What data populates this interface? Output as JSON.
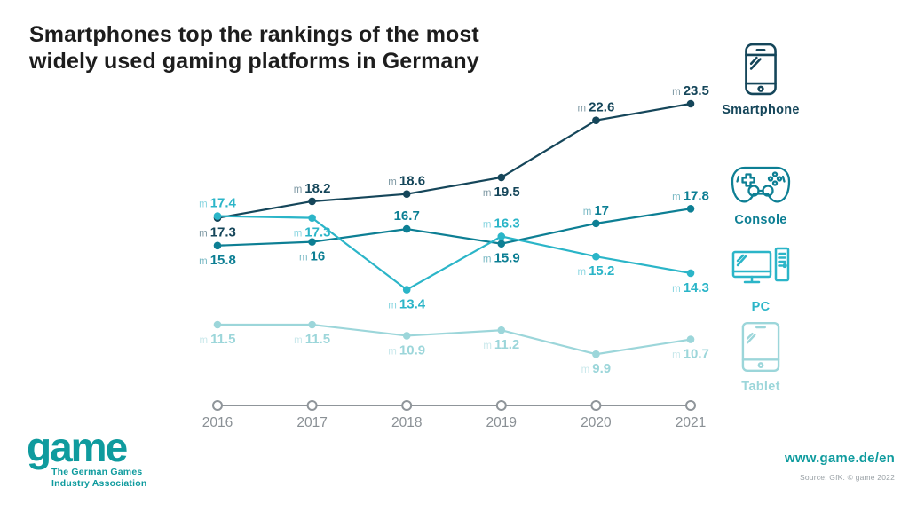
{
  "title": {
    "line1": "Smartphones top the rankings of the most",
    "line2": "widely used gaming platforms in Germany"
  },
  "chart_data": {
    "type": "line",
    "x": [
      "2016",
      "2017",
      "2018",
      "2019",
      "2020",
      "2021"
    ],
    "xlabel": "",
    "ylabel": "",
    "ylim": [
      9,
      24
    ],
    "grid": false,
    "legend_position": "right",
    "value_unit_prefix": "m",
    "series": [
      {
        "name": "Smartphone",
        "color": "#15465a",
        "values": [
          17.3,
          18.2,
          18.6,
          19.5,
          22.6,
          23.5
        ],
        "labels": [
          "17.3",
          "18.2",
          "18.6",
          "19.5",
          "22.6",
          "23.5"
        ],
        "label_prefixes": [
          "m",
          "m",
          "m",
          "m",
          "m",
          "m"
        ],
        "label_positions": [
          "below",
          "above",
          "above",
          "below",
          "above",
          "above"
        ]
      },
      {
        "name": "Console",
        "color": "#0d7f94",
        "values": [
          15.8,
          16,
          16.7,
          15.9,
          17,
          17.8
        ],
        "labels": [
          "15.8",
          "16",
          "16.7",
          "15.9",
          "17",
          "17.8"
        ],
        "label_prefixes": [
          "m",
          "m",
          "",
          "m",
          "m",
          "m"
        ],
        "label_positions": [
          "below",
          "below",
          "above",
          "below",
          "above",
          "above"
        ]
      },
      {
        "name": "PC",
        "color": "#2bb5c8",
        "values": [
          17.4,
          17.3,
          13.4,
          16.3,
          15.2,
          14.3
        ],
        "labels": [
          "17.4",
          "17.3",
          "13.4",
          "16.3",
          "15.2",
          "14.3"
        ],
        "label_prefixes": [
          "m",
          "m",
          "m",
          "m",
          "m",
          "m"
        ],
        "label_positions": [
          "above",
          "below",
          "below",
          "above",
          "below",
          "below"
        ]
      },
      {
        "name": "Tablet",
        "color": "#9cd6da",
        "values": [
          11.5,
          11.5,
          10.9,
          11.2,
          9.9,
          10.7
        ],
        "labels": [
          "11.5",
          "11.5",
          "10.9",
          "11.2",
          "9.9",
          "10.7"
        ],
        "label_prefixes": [
          "m",
          "m",
          "m",
          "m",
          "m",
          "m"
        ],
        "label_positions": [
          "below",
          "below",
          "below",
          "below",
          "below",
          "below"
        ]
      }
    ]
  },
  "footer": {
    "logo_text": "game",
    "logo_subtitle_line1": "The German Games",
    "logo_subtitle_line2": "Industry Association",
    "website": "www.game.de/en",
    "source": "Source: GfK. © game 2022"
  },
  "colors": {
    "title": "#1d1d1d",
    "axis": "#8f959a",
    "year_label": "#8a9095",
    "brand": "#0f9b9e",
    "source_text": "#9aa1a6"
  }
}
